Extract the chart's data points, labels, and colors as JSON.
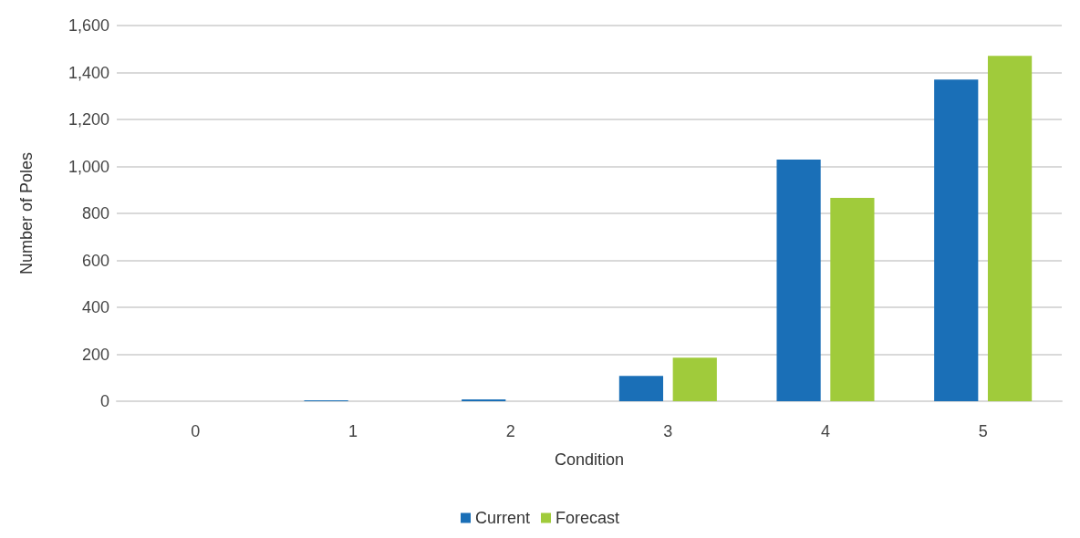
{
  "chart_data": {
    "type": "bar",
    "xlabel": "Condition",
    "ylabel": "Number of Poles",
    "categories": [
      "0",
      "1",
      "2",
      "3",
      "4",
      "5"
    ],
    "series": [
      {
        "name": "Current",
        "color": "#1a6fb7",
        "values": [
          0,
          4,
          8,
          108,
          1029,
          1370
        ]
      },
      {
        "name": "Forecast",
        "color": "#a0cb3b",
        "values": [
          0,
          0,
          0,
          185,
          866,
          1471
        ]
      }
    ],
    "ylim": [
      0,
      1600
    ],
    "yticks": [
      0,
      200,
      400,
      600,
      800,
      {
        "value": 1000,
        "label": "1,000"
      },
      {
        "value": 1200,
        "label": "1,200"
      },
      {
        "value": 1400,
        "label": "1,400"
      },
      {
        "value": 1600,
        "label": "1,600"
      }
    ],
    "grid": "y",
    "legend": "bottom"
  }
}
